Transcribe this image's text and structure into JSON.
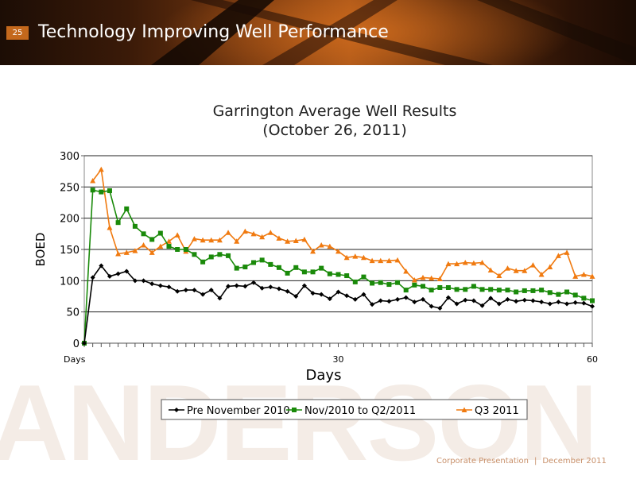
{
  "slide": {
    "number": "25",
    "title": "Technology Improving Well Performance",
    "watermark": "ANDERSON",
    "footer_left": "Corporate Presentation",
    "footer_sep": "|",
    "footer_right": "December 2011"
  },
  "chart_data": {
    "type": "line",
    "title": [
      "Garrington Average Well Results",
      "(October 26, 2011)"
    ],
    "xlabel": "Days",
    "ylabel": "BOED",
    "xlim": [
      0,
      60
    ],
    "ylim": [
      0,
      300
    ],
    "yticks": [
      0,
      50,
      100,
      150,
      200,
      250,
      300
    ],
    "xtick_labels": [
      {
        "x": 0,
        "label": "Days"
      },
      {
        "x": 30,
        "label": "30"
      },
      {
        "x": 60,
        "label": "60"
      }
    ],
    "grid": true,
    "legend": "bottom",
    "series": [
      {
        "name": "Pre November  2010",
        "color": "#000000",
        "marker": "diamond",
        "x": [
          0,
          1,
          2,
          3,
          4,
          5,
          6,
          7,
          8,
          9,
          10,
          11,
          12,
          13,
          14,
          15,
          16,
          17,
          18,
          19,
          20,
          21,
          22,
          23,
          24,
          25,
          26,
          27,
          28,
          29,
          30,
          31,
          32,
          33,
          34,
          35,
          36,
          37,
          38,
          39,
          40,
          41,
          42,
          43,
          44,
          45,
          46,
          47,
          48,
          49,
          50,
          51,
          52,
          53,
          54,
          55,
          56,
          57,
          58,
          59,
          60
        ],
        "values": [
          0,
          105,
          124,
          107,
          111,
          115,
          100,
          100,
          95,
          92,
          90,
          83,
          85,
          85,
          78,
          85,
          72,
          91,
          92,
          91,
          97,
          88,
          90,
          87,
          83,
          75,
          92,
          80,
          78,
          71,
          82,
          76,
          70,
          78,
          62,
          68,
          67,
          70,
          73,
          66,
          70,
          59,
          56,
          73,
          63,
          69,
          68,
          60,
          72,
          63,
          70,
          67,
          69,
          68,
          66,
          63,
          66,
          63,
          65,
          64,
          59
        ]
      },
      {
        "name": "Nov/2010 to Q2/2011",
        "color": "#1a8a0a",
        "marker": "square",
        "x": [
          0,
          1,
          2,
          3,
          4,
          5,
          6,
          7,
          8,
          9,
          10,
          11,
          12,
          13,
          14,
          15,
          16,
          17,
          18,
          19,
          20,
          21,
          22,
          23,
          24,
          25,
          26,
          27,
          28,
          29,
          30,
          31,
          32,
          33,
          34,
          35,
          36,
          37,
          38,
          39,
          40,
          41,
          42,
          43,
          44,
          45,
          46,
          47,
          48,
          49,
          50,
          51,
          52,
          53,
          54,
          55,
          56,
          57,
          58,
          59,
          60
        ],
        "values": [
          0,
          245,
          242,
          244,
          193,
          215,
          187,
          175,
          166,
          176,
          155,
          150,
          150,
          142,
          130,
          138,
          142,
          140,
          120,
          122,
          129,
          133,
          126,
          121,
          112,
          121,
          114,
          114,
          120,
          111,
          110,
          108,
          98,
          106,
          96,
          97,
          94,
          97,
          85,
          93,
          91,
          85,
          89,
          89,
          86,
          86,
          91,
          86,
          86,
          85,
          85,
          82,
          84,
          84,
          85,
          81,
          78,
          82,
          77,
          72,
          68
        ]
      },
      {
        "name": "Q3 2011",
        "color": "#f07a10",
        "marker": "triangle",
        "x": [
          1,
          2,
          3,
          4,
          5,
          6,
          7,
          8,
          9,
          10,
          11,
          12,
          13,
          14,
          15,
          16,
          17,
          18,
          19,
          20,
          21,
          22,
          23,
          24,
          25,
          26,
          27,
          28,
          29,
          30,
          31,
          32,
          33,
          34,
          35,
          36,
          37,
          38,
          39,
          40,
          41,
          42,
          43,
          44,
          45,
          46,
          47,
          48,
          49,
          50,
          51,
          52,
          53,
          54,
          55,
          56,
          57,
          58,
          59,
          60
        ],
        "values": [
          260,
          278,
          185,
          143,
          145,
          148,
          157,
          145,
          155,
          163,
          173,
          147,
          167,
          165,
          165,
          165,
          177,
          163,
          179,
          175,
          170,
          177,
          168,
          163,
          164,
          166,
          147,
          157,
          155,
          147,
          137,
          139,
          137,
          132,
          132,
          132,
          133,
          115,
          101,
          105,
          104,
          103,
          127,
          127,
          129,
          128,
          129,
          117,
          108,
          120,
          116,
          116,
          125,
          110,
          122,
          140,
          145,
          107,
          110,
          107
        ]
      }
    ]
  }
}
